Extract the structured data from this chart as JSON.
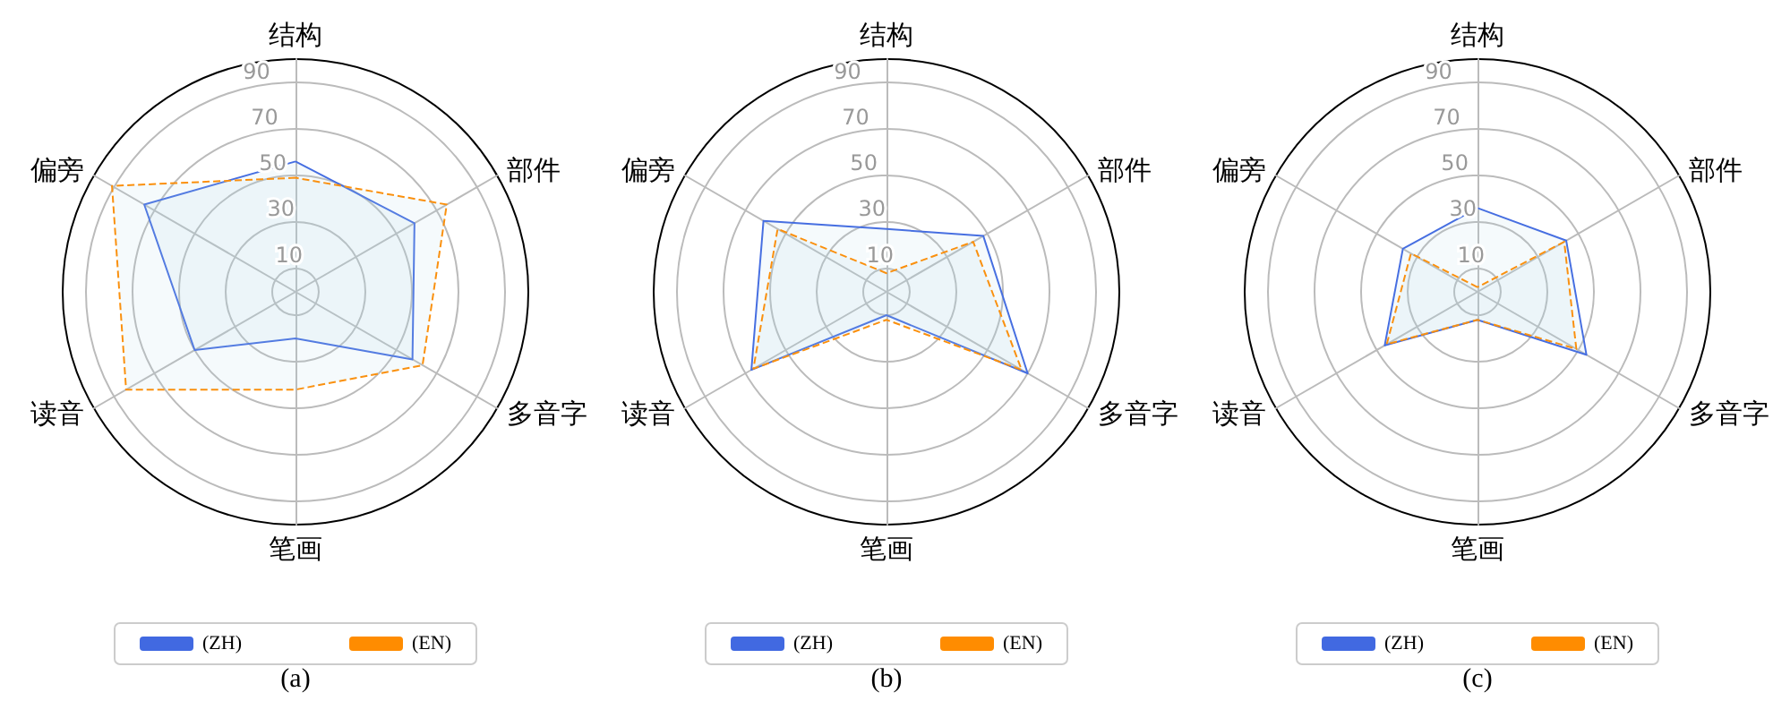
{
  "chart_data": [
    {
      "type": "radar",
      "categories": [
        "结构",
        "部件",
        "多音字",
        "笔画",
        "读音",
        "偏旁"
      ],
      "ylim": [
        0,
        100
      ],
      "yticks": [
        10,
        30,
        50,
        70,
        90
      ],
      "grid": true,
      "legend": "bottom",
      "marker": "none",
      "annotations": [
        "(a)"
      ],
      "series": [
        {
          "name": "(ZH)",
          "color": "#4169e1",
          "line_style": "solid",
          "values": [
            56,
            59,
            58,
            20,
            50,
            75
          ]
        },
        {
          "name": "(EN)",
          "color": "#ff8c00",
          "line_style": "dashed",
          "values": [
            49,
            75,
            63,
            42,
            84,
            91
          ]
        }
      ]
    },
    {
      "type": "radar",
      "categories": [
        "结构",
        "部件",
        "多音字",
        "笔画",
        "读音",
        "偏旁"
      ],
      "ylim": [
        0,
        100
      ],
      "yticks": [
        10,
        30,
        50,
        70,
        90
      ],
      "grid": true,
      "legend": "bottom",
      "marker": "none",
      "annotations": [
        "(b)"
      ],
      "series": [
        {
          "name": "(ZH)",
          "color": "#4169e1",
          "line_style": "solid",
          "values": [
            27,
            48,
            70,
            10,
            67,
            61
          ]
        },
        {
          "name": "(EN)",
          "color": "#ff8c00",
          "line_style": "dashed",
          "values": [
            8,
            43,
            67,
            12,
            66,
            54
          ]
        }
      ]
    },
    {
      "type": "radar",
      "categories": [
        "结构",
        "部件",
        "多音字",
        "笔画",
        "读音",
        "偏旁"
      ],
      "ylim": [
        0,
        100
      ],
      "yticks": [
        10,
        30,
        50,
        70,
        90
      ],
      "grid": true,
      "legend": "bottom",
      "marker": "none",
      "annotations": [
        "(c)"
      ],
      "series": [
        {
          "name": "(ZH)",
          "color": "#4169e1",
          "line_style": "solid",
          "values": [
            36,
            44,
            54,
            12,
            46,
            37
          ]
        },
        {
          "name": "(EN)",
          "color": "#ff8c00",
          "line_style": "dashed",
          "values": [
            2,
            43,
            49,
            12,
            45,
            33
          ]
        }
      ]
    }
  ]
}
